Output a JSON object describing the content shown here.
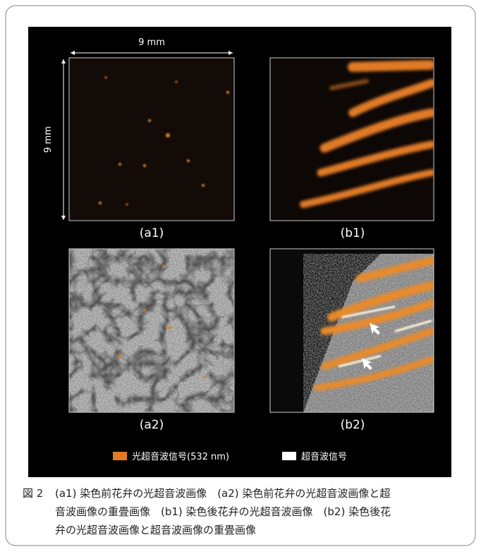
{
  "figure": {
    "scale_x": "9 mm",
    "scale_y": "9 mm",
    "panels": [
      {
        "label": "(a1)"
      },
      {
        "label": "(b1)"
      },
      {
        "label": "(a2)"
      },
      {
        "label": "(b2)"
      }
    ],
    "legend": [
      {
        "label": "光超音波信号(532 nm)"
      },
      {
        "label": "超音波信号"
      }
    ]
  },
  "caption": {
    "number": "図 2",
    "lines": [
      "(a1) 染色前花弁の光超音波画像　(a2) 染色前花弁の光超音波画像と超",
      "音波画像の重畳画像　(b1) 染色後花弁の光超音波画像　(b2) 染色後花",
      "弁の光超音波画像と超音波画像の重畳画像"
    ]
  }
}
